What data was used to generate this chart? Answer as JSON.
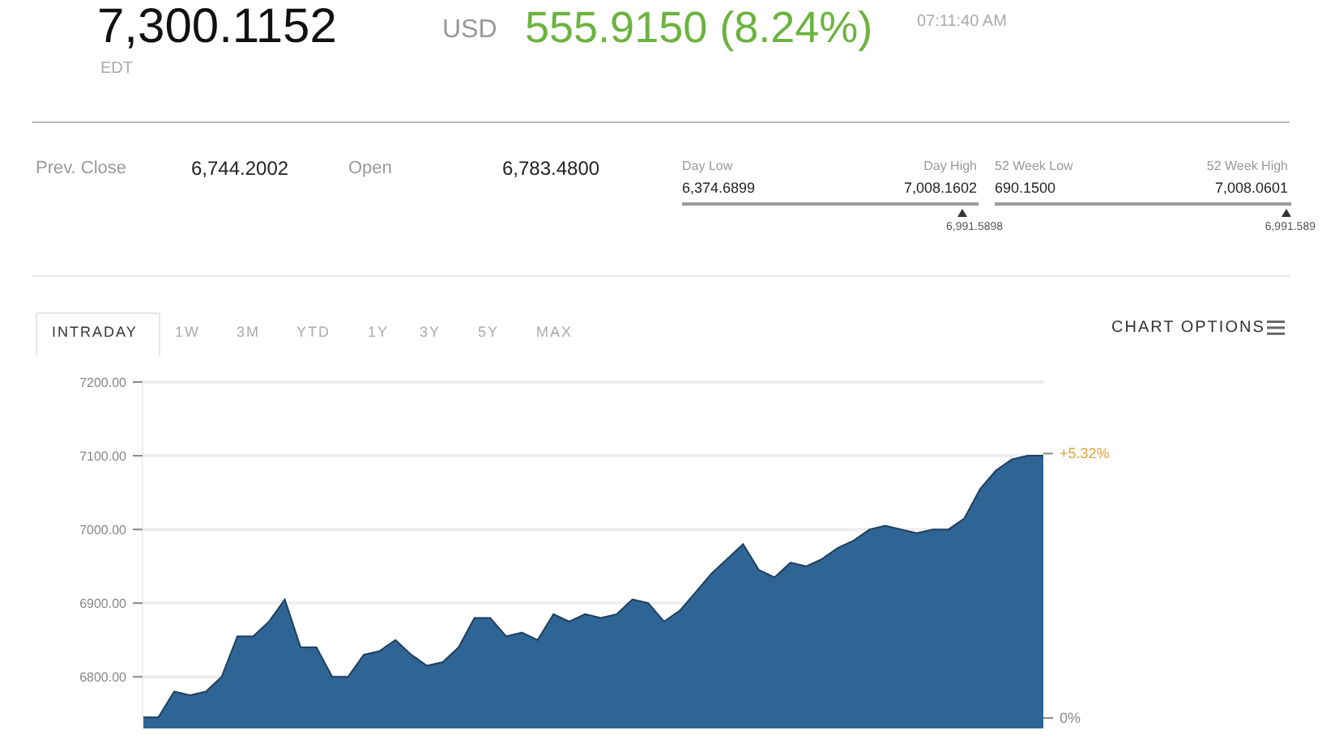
{
  "chart_data": {
    "type": "area",
    "annotations": [
      "7,300.1152",
      "USD",
      "555.9150 (8.24%)",
      "07:11:40 AM",
      "EDT",
      "Prev. Close",
      "6,744.2002",
      "Open",
      "6,783.4800",
      "Day Low",
      "6,374.6899",
      "Day High",
      "7,008.1602",
      "6,991.5898",
      "52 Week Low",
      "690.1500",
      "52 Week High",
      "7,008.0601",
      "6,991.589",
      "INTRADAY",
      "1W",
      "3M",
      "YTD",
      "1Y",
      "3Y",
      "5Y",
      "MAX",
      "CHART OPTIONS"
    ],
    "y2lim": [
      -0.21,
      6.76
    ],
    "y2ticks": [
      {
        "value": 0,
        "label": "0%"
      },
      {
        "value": 5.32,
        "label": "+5.32%"
      }
    ],
    "categories": [
      null,
      null,
      null,
      null,
      null,
      null,
      null,
      null,
      null,
      null,
      null,
      null,
      null,
      null,
      null,
      null,
      null,
      null,
      null,
      null,
      null,
      null,
      null,
      null,
      null,
      null,
      null,
      null,
      null,
      null,
      null,
      null,
      null,
      null,
      null,
      null,
      null,
      null,
      null,
      null,
      null,
      null,
      null,
      null,
      null,
      null,
      null,
      null,
      null,
      null,
      null,
      null,
      null,
      null,
      null,
      null,
      null,
      null
    ],
    "series": [
      {
        "color": "#2f6595",
        "values": [
          6745,
          6745,
          6780,
          6775,
          6780,
          6800,
          6855,
          6855,
          6875,
          6905,
          6840,
          6840,
          6800,
          6800,
          6830,
          6835,
          6850,
          6830,
          6815,
          6820,
          6840,
          6880,
          6880,
          6855,
          6860,
          6850,
          6885,
          6875,
          6885,
          6880,
          6885,
          6905,
          6900,
          6875,
          6890,
          6915,
          6940,
          6960,
          6980,
          6945,
          6935,
          6955,
          6950,
          6960,
          6975,
          6985,
          7000,
          7005,
          7000,
          6995,
          7000,
          7000,
          7015,
          7055,
          7080,
          7095,
          7100,
          7100
        ]
      }
    ],
    "ylim": [
      6730,
      7200
    ],
    "yticks": [
      {
        "value": 6800,
        "label": "6800.00"
      },
      {
        "value": 6900,
        "label": "6900.00"
      },
      {
        "value": 7000,
        "label": "7000.00"
      },
      {
        "value": 7100,
        "label": "7100.00"
      },
      {
        "value": 7200,
        "label": "7200.00"
      }
    ],
    "grid": "y",
    "legend": false
  }
}
